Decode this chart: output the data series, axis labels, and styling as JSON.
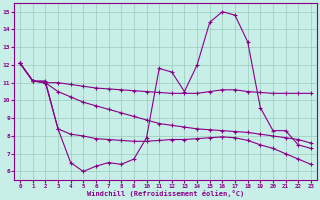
{
  "xlabel": "Windchill (Refroidissement éolien,°C)",
  "background_color": "#c8eee8",
  "line_color": "#880088",
  "grid_color": "#99ccbb",
  "xlim": [
    -0.5,
    23.5
  ],
  "ylim": [
    5.5,
    15.5
  ],
  "xticks": [
    0,
    1,
    2,
    3,
    4,
    5,
    6,
    7,
    8,
    9,
    10,
    11,
    12,
    13,
    14,
    15,
    16,
    17,
    18,
    19,
    20,
    21,
    22,
    23
  ],
  "yticks": [
    6,
    7,
    8,
    9,
    10,
    11,
    12,
    13,
    14,
    15
  ],
  "line1_x": [
    0,
    1,
    2,
    3,
    4,
    5,
    6,
    7,
    8,
    9,
    10,
    11,
    12,
    13,
    14,
    15,
    16,
    17,
    18,
    19,
    20,
    21,
    22,
    23
  ],
  "line1_y": [
    12.1,
    11.1,
    11.1,
    8.4,
    6.5,
    6.0,
    6.3,
    6.5,
    6.4,
    6.7,
    7.9,
    11.8,
    11.6,
    10.5,
    12.0,
    14.4,
    15.0,
    14.8,
    13.3,
    9.6,
    8.3,
    8.3,
    7.5,
    7.3
  ],
  "line2_x": [
    0,
    1,
    2,
    3,
    4,
    5,
    6,
    7,
    8,
    9,
    10,
    11,
    12,
    13,
    14,
    15,
    16,
    17,
    18,
    19,
    20,
    21,
    22,
    23
  ],
  "line2_y": [
    12.1,
    11.1,
    11.0,
    11.0,
    10.9,
    10.8,
    10.7,
    10.65,
    10.6,
    10.55,
    10.5,
    10.45,
    10.4,
    10.4,
    10.4,
    10.5,
    10.6,
    10.6,
    10.5,
    10.45,
    10.4,
    10.4,
    10.4,
    10.4
  ],
  "line3_x": [
    0,
    1,
    2,
    3,
    4,
    5,
    6,
    7,
    8,
    9,
    10,
    11,
    12,
    13,
    14,
    15,
    16,
    17,
    18,
    19,
    20,
    21,
    22,
    23
  ],
  "line3_y": [
    12.1,
    11.1,
    11.0,
    10.5,
    10.2,
    9.9,
    9.7,
    9.5,
    9.3,
    9.1,
    8.9,
    8.7,
    8.6,
    8.5,
    8.4,
    8.35,
    8.3,
    8.25,
    8.2,
    8.1,
    8.0,
    7.9,
    7.8,
    7.6
  ],
  "line4_x": [
    0,
    1,
    2,
    3,
    4,
    5,
    6,
    7,
    8,
    9,
    10,
    11,
    12,
    13,
    14,
    15,
    16,
    17,
    18,
    19,
    20,
    21,
    22,
    23
  ],
  "line4_y": [
    12.1,
    11.1,
    11.0,
    8.4,
    8.1,
    8.0,
    7.85,
    7.8,
    7.75,
    7.7,
    7.7,
    7.75,
    7.8,
    7.8,
    7.85,
    7.9,
    7.95,
    7.9,
    7.75,
    7.5,
    7.3,
    7.0,
    6.7,
    6.4
  ]
}
